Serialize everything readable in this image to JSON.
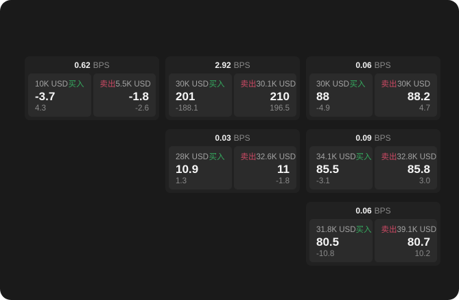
{
  "labels": {
    "bps": "BPS",
    "buy": "买入",
    "sell": "卖出"
  },
  "colors": {
    "page_bg": "#1a1a1a",
    "card_bg": "#212121",
    "panel_bg": "#2b2b2b",
    "buy_green": "#35a85e",
    "sell_red": "#cc4a64",
    "primary_text": "#f5f5f5",
    "muted_text": "#8a8a8a"
  },
  "cards": [
    {
      "bps": "0.62",
      "row": 1,
      "col": 1,
      "buy": {
        "size": "10K USD",
        "price": "-3.7",
        "delta": "4.3"
      },
      "sell": {
        "size": "5.5K USD",
        "price": "-1.8",
        "delta": "-2.6"
      }
    },
    {
      "bps": "2.92",
      "row": 1,
      "col": 2,
      "buy": {
        "size": "30K USD",
        "price": "201",
        "delta": "-188.1"
      },
      "sell": {
        "size": "30.1K USD",
        "price": "210",
        "delta": "196.5"
      }
    },
    {
      "bps": "0.06",
      "row": 1,
      "col": 3,
      "buy": {
        "size": "30K USD",
        "price": "88",
        "delta": "-4.9"
      },
      "sell": {
        "size": "30K USD",
        "price": "88.2",
        "delta": "4.7"
      }
    },
    {
      "bps": "0.03",
      "row": 2,
      "col": 2,
      "buy": {
        "size": "28K USD",
        "price": "10.9",
        "delta": "1.3"
      },
      "sell": {
        "size": "32.6K USD",
        "price": "11",
        "delta": "-1.8"
      }
    },
    {
      "bps": "0.09",
      "row": 2,
      "col": 3,
      "buy": {
        "size": "34.1K USD",
        "price": "85.5",
        "delta": "-3.1"
      },
      "sell": {
        "size": "32.8K USD",
        "price": "85.8",
        "delta": "3.0"
      }
    },
    {
      "bps": "0.06",
      "row": 3,
      "col": 3,
      "buy": {
        "size": "31.8K USD",
        "price": "80.5",
        "delta": "-10.8"
      },
      "sell": {
        "size": "39.1K USD",
        "price": "80.7",
        "delta": "10.2"
      }
    }
  ]
}
